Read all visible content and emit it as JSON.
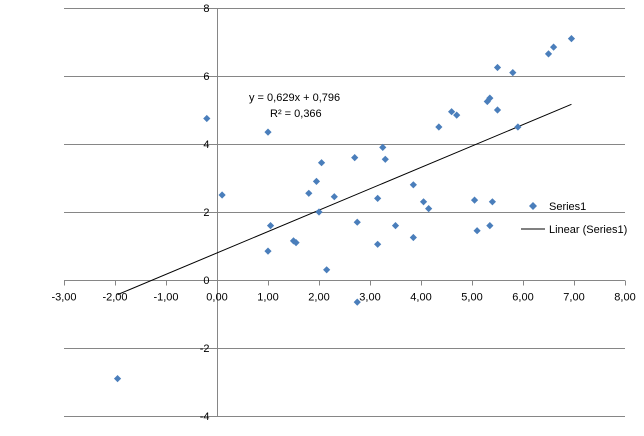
{
  "chart_data": {
    "type": "scatter",
    "xlim": [
      -3,
      8
    ],
    "ylim": [
      -4,
      8
    ],
    "x_ticks": [
      -3,
      -2,
      -1,
      0,
      1,
      2,
      3,
      4,
      5,
      6,
      7,
      8
    ],
    "x_tick_labels": [
      "-3,00",
      "-2,00",
      "-1,00",
      "0,00",
      "1,00",
      "2,00",
      "3,00",
      "4,00",
      "5,00",
      "6,00",
      "7,00",
      "8,00"
    ],
    "y_ticks": [
      -4,
      -2,
      0,
      2,
      4,
      6,
      8
    ],
    "y_tick_labels": [
      "-4",
      "-2",
      "0",
      "2",
      "4",
      "6",
      "8"
    ],
    "grid": "horizontal major gridlines",
    "legend_position": "right",
    "colors": {
      "marker": "#4A7EBB",
      "trendline": "#000000",
      "grid": "#868686"
    },
    "series": [
      {
        "name": "Series1",
        "marker": "diamond",
        "points": [
          [
            -1.95,
            -2.9
          ],
          [
            -0.2,
            4.75
          ],
          [
            0.1,
            2.5
          ],
          [
            1.0,
            4.35
          ],
          [
            1.0,
            0.85
          ],
          [
            1.05,
            1.6
          ],
          [
            1.5,
            1.15
          ],
          [
            1.55,
            1.1
          ],
          [
            1.8,
            2.55
          ],
          [
            1.95,
            2.9
          ],
          [
            2.0,
            2.0
          ],
          [
            2.05,
            3.45
          ],
          [
            2.15,
            0.3
          ],
          [
            2.3,
            2.45
          ],
          [
            2.7,
            3.6
          ],
          [
            2.75,
            1.7
          ],
          [
            3.15,
            2.4
          ],
          [
            3.15,
            1.05
          ],
          [
            3.25,
            3.9
          ],
          [
            3.3,
            3.55
          ],
          [
            3.5,
            1.6
          ],
          [
            3.85,
            2.8
          ],
          [
            3.85,
            1.25
          ],
          [
            4.05,
            2.3
          ],
          [
            4.15,
            2.1
          ],
          [
            4.35,
            4.5
          ],
          [
            4.6,
            4.95
          ],
          [
            4.7,
            4.85
          ],
          [
            5.05,
            2.35
          ],
          [
            5.1,
            1.45
          ],
          [
            5.3,
            5.25
          ],
          [
            5.35,
            5.35
          ],
          [
            5.35,
            1.6
          ],
          [
            5.4,
            2.3
          ],
          [
            5.5,
            6.25
          ],
          [
            5.5,
            5.0
          ],
          [
            5.8,
            6.1
          ],
          [
            5.9,
            4.5
          ],
          [
            6.5,
            6.65
          ],
          [
            6.6,
            6.85
          ],
          [
            6.95,
            7.1
          ],
          [
            2.75,
            -0.65
          ]
        ]
      }
    ],
    "trendline": {
      "name": "Linear (Series1)",
      "slope": 0.629,
      "intercept": 0.796,
      "x_range": [
        -1.95,
        6.95
      ],
      "equation_label": "y = 0,629x + 0,796",
      "r2_label": "R² = 0,366"
    }
  }
}
